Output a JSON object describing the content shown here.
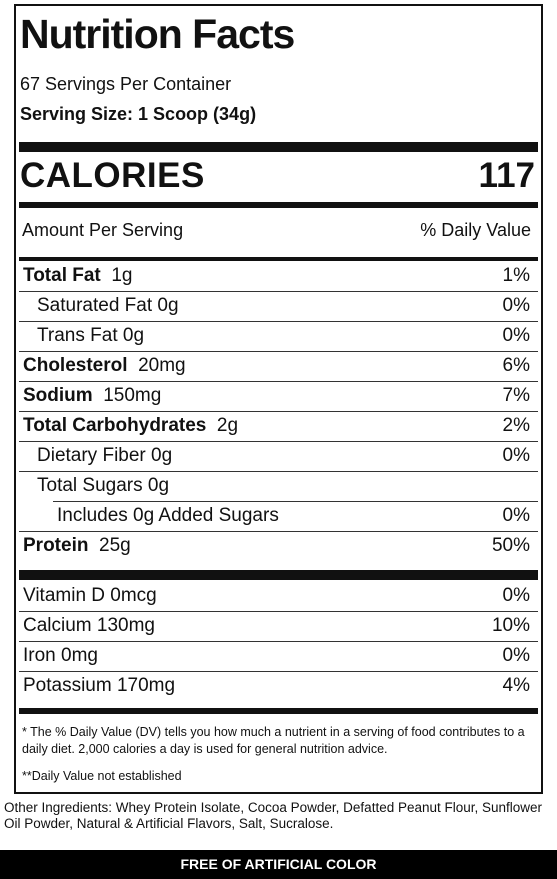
{
  "panel": {
    "title": "Nutrition Facts",
    "servings_per_container": "67 Servings Per Container",
    "serving_size": "Serving Size: 1 Scoop (34g)",
    "calories_label": "CALORIES",
    "calories_value": "117",
    "amount_per_serving": "Amount Per Serving",
    "daily_value_header": "% Daily Value"
  },
  "nutrients": [
    {
      "bold": "Total Fat",
      "amount": "1g",
      "dv": "1%"
    },
    {
      "bold": "",
      "amount": "Saturated Fat  0g",
      "dv": "0%"
    },
    {
      "bold": "",
      "amount": "Trans Fat  0g",
      "dv": "0%"
    },
    {
      "bold": "Cholesterol",
      "amount": "20mg",
      "dv": "6%"
    },
    {
      "bold": "Sodium",
      "amount": "150mg",
      "dv": "7%"
    },
    {
      "bold": "Total Carbohydrates",
      "amount": "2g",
      "dv": "2%"
    },
    {
      "bold": "",
      "amount": "Dietary Fiber  0g",
      "dv": "0%"
    },
    {
      "bold": "",
      "amount": "Total Sugars  0g",
      "dv": ""
    },
    {
      "bold": "",
      "amount": "Includes 0g Added Sugars",
      "dv": "0%"
    },
    {
      "bold": "Protein",
      "amount": "25g",
      "dv": "50%"
    }
  ],
  "vitamins": [
    {
      "name": "Vitamin D  0mcg",
      "dv": "0%"
    },
    {
      "name": "Calcium  130mg",
      "dv": "10%"
    },
    {
      "name": "Iron  0mg",
      "dv": "0%"
    },
    {
      "name": "Potassium  170mg",
      "dv": "4%"
    }
  ],
  "footnotes": {
    "dv_note": "* The % Daily Value (DV) tells you how much a nutrient in a serving of food contributes to a daily diet. 2,000 calories a day is used for general nutrition advice.",
    "not_established": "**Daily Value not established"
  },
  "ingredients": "Other Ingredients: Whey Protein Isolate, Cocoa Powder, Defatted Peanut Flour, Sunflower Oil Powder, Natural & Artificial Flavors, Salt, Sucralose.",
  "banner": "FREE OF ARTIFICIAL COLOR"
}
